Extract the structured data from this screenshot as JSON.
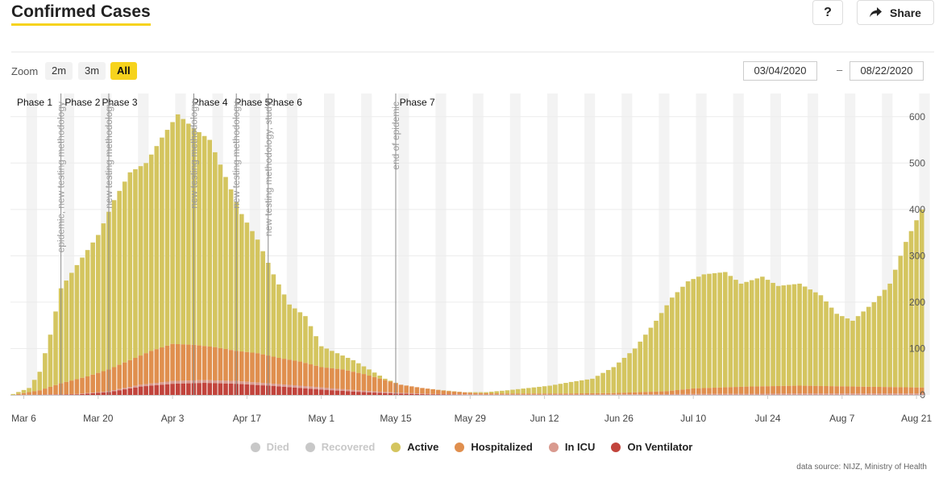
{
  "header": {
    "title": "Confirmed Cases",
    "help_label": "?",
    "share_label": "Share"
  },
  "zoom": {
    "label": "Zoom",
    "options": [
      "2m",
      "3m",
      "All"
    ],
    "selected": "All"
  },
  "range": {
    "from": "03/04/2020",
    "separator": "–",
    "to": "08/22/2020"
  },
  "source": "data source: NIJZ, Ministry of Health",
  "colors": {
    "accent": "#f6d31d",
    "died": "#c8c8c8",
    "recovered": "#c8c8c8",
    "active": "#d4c55f",
    "hospitalized": "#e08f4e",
    "icu": "#d99a8f",
    "ventilator": "#c2443c"
  },
  "chart_data": {
    "type": "bar",
    "stacked": true,
    "x_range": [
      "2020-03-04",
      "2020-08-22"
    ],
    "ylim": [
      0,
      650
    ],
    "y_ticks": [
      0,
      100,
      200,
      300,
      400,
      500,
      600
    ],
    "x_tick_labels": [
      "Mar 6",
      "Mar 20",
      "Apr 3",
      "Apr 17",
      "May 1",
      "May 15",
      "May 29",
      "Jun 12",
      "Jun 26",
      "Jul 10",
      "Jul 24",
      "Aug 7",
      "Aug 21"
    ],
    "grid": true,
    "legend_position": "bottom-center",
    "legend": [
      {
        "name": "Died",
        "visible": false
      },
      {
        "name": "Recovered",
        "visible": false
      },
      {
        "name": "Active",
        "visible": true
      },
      {
        "name": "Hospitalized",
        "visible": true
      },
      {
        "name": "In ICU",
        "visible": true
      },
      {
        "name": "On Ventilator",
        "visible": true
      }
    ],
    "phases": [
      {
        "label": "Phase 1",
        "date": "2020-03-04"
      },
      {
        "label": "Phase 2",
        "date": "2020-03-13"
      },
      {
        "label": "Phase 3",
        "date": "2020-03-20"
      },
      {
        "label": "Phase 4",
        "date": "2020-04-06"
      },
      {
        "label": "Phase 5",
        "date": "2020-04-14"
      },
      {
        "label": "Phase 6",
        "date": "2020-04-20"
      },
      {
        "label": "Phase 7",
        "date": "2020-05-15"
      }
    ],
    "annotations": [
      {
        "date": "2020-03-13",
        "text": "epidemic, new testing methodology"
      },
      {
        "date": "2020-03-22",
        "text": "new testing methodology"
      },
      {
        "date": "2020-04-07",
        "text": "new testing methodology"
      },
      {
        "date": "2020-04-15",
        "text": "new testing methodology"
      },
      {
        "date": "2020-04-21",
        "text": "new testing methodology, study"
      },
      {
        "date": "2020-05-15",
        "text": "end of epidemic"
      }
    ],
    "keypoints": {
      "active": [
        [
          "2020-03-04",
          2
        ],
        [
          "2020-03-07",
          15
        ],
        [
          "2020-03-09",
          50
        ],
        [
          "2020-03-11",
          130
        ],
        [
          "2020-03-13",
          230
        ],
        [
          "2020-03-16",
          280
        ],
        [
          "2020-03-20",
          345
        ],
        [
          "2020-03-23",
          420
        ],
        [
          "2020-03-26",
          480
        ],
        [
          "2020-03-29",
          500
        ],
        [
          "2020-04-01",
          555
        ],
        [
          "2020-04-04",
          605
        ],
        [
          "2020-04-07",
          575
        ],
        [
          "2020-04-10",
          550
        ],
        [
          "2020-04-13",
          470
        ],
        [
          "2020-04-16",
          390
        ],
        [
          "2020-04-19",
          335
        ],
        [
          "2020-04-22",
          260
        ],
        [
          "2020-04-25",
          195
        ],
        [
          "2020-04-28",
          170
        ],
        [
          "2020-05-01",
          105
        ],
        [
          "2020-05-04",
          90
        ],
        [
          "2020-05-07",
          75
        ],
        [
          "2020-05-10",
          55
        ],
        [
          "2020-05-13",
          35
        ],
        [
          "2020-05-16",
          22
        ],
        [
          "2020-05-20",
          15
        ],
        [
          "2020-05-24",
          10
        ],
        [
          "2020-05-28",
          6
        ],
        [
          "2020-06-01",
          6
        ],
        [
          "2020-06-05",
          10
        ],
        [
          "2020-06-09",
          15
        ],
        [
          "2020-06-13",
          20
        ],
        [
          "2020-06-17",
          28
        ],
        [
          "2020-06-21",
          35
        ],
        [
          "2020-06-25",
          60
        ],
        [
          "2020-06-29",
          100
        ],
        [
          "2020-07-03",
          160
        ],
        [
          "2020-07-06",
          210
        ],
        [
          "2020-07-09",
          245
        ],
        [
          "2020-07-12",
          260
        ],
        [
          "2020-07-16",
          265
        ],
        [
          "2020-07-19",
          240
        ],
        [
          "2020-07-23",
          255
        ],
        [
          "2020-07-26",
          235
        ],
        [
          "2020-07-30",
          240
        ],
        [
          "2020-08-03",
          215
        ],
        [
          "2020-08-06",
          175
        ],
        [
          "2020-08-09",
          160
        ],
        [
          "2020-08-13",
          200
        ],
        [
          "2020-08-16",
          240
        ],
        [
          "2020-08-19",
          330
        ],
        [
          "2020-08-22",
          400
        ]
      ],
      "hospitalized": [
        [
          "2020-03-04",
          0
        ],
        [
          "2020-03-09",
          10
        ],
        [
          "2020-03-13",
          25
        ],
        [
          "2020-03-18",
          40
        ],
        [
          "2020-03-22",
          55
        ],
        [
          "2020-03-26",
          75
        ],
        [
          "2020-03-30",
          95
        ],
        [
          "2020-04-03",
          110
        ],
        [
          "2020-04-07",
          108
        ],
        [
          "2020-04-11",
          103
        ],
        [
          "2020-04-15",
          95
        ],
        [
          "2020-04-19",
          90
        ],
        [
          "2020-04-23",
          80
        ],
        [
          "2020-04-27",
          72
        ],
        [
          "2020-05-01",
          60
        ],
        [
          "2020-05-05",
          55
        ],
        [
          "2020-05-09",
          45
        ],
        [
          "2020-05-13",
          32
        ],
        [
          "2020-05-16",
          22
        ],
        [
          "2020-05-20",
          15
        ],
        [
          "2020-05-25",
          8
        ],
        [
          "2020-05-30",
          4
        ],
        [
          "2020-06-05",
          3
        ],
        [
          "2020-06-15",
          3
        ],
        [
          "2020-06-25",
          4
        ],
        [
          "2020-07-05",
          8
        ],
        [
          "2020-07-10",
          14
        ],
        [
          "2020-07-20",
          18
        ],
        [
          "2020-07-30",
          20
        ],
        [
          "2020-08-10",
          18
        ],
        [
          "2020-08-22",
          16
        ]
      ],
      "icu": [
        [
          "2020-03-04",
          0
        ],
        [
          "2020-03-16",
          2
        ],
        [
          "2020-03-22",
          8
        ],
        [
          "2020-03-28",
          22
        ],
        [
          "2020-04-03",
          30
        ],
        [
          "2020-04-09",
          32
        ],
        [
          "2020-04-15",
          30
        ],
        [
          "2020-04-21",
          25
        ],
        [
          "2020-04-27",
          20
        ],
        [
          "2020-05-03",
          14
        ],
        [
          "2020-05-09",
          9
        ],
        [
          "2020-05-15",
          5
        ],
        [
          "2020-05-22",
          2
        ],
        [
          "2020-06-01",
          1
        ],
        [
          "2020-06-20",
          1
        ],
        [
          "2020-07-10",
          2
        ],
        [
          "2020-07-30",
          3
        ],
        [
          "2020-08-22",
          3
        ]
      ],
      "ventilator": [
        [
          "2020-03-04",
          0
        ],
        [
          "2020-03-16",
          1
        ],
        [
          "2020-03-22",
          6
        ],
        [
          "2020-03-28",
          18
        ],
        [
          "2020-04-03",
          24
        ],
        [
          "2020-04-09",
          26
        ],
        [
          "2020-04-15",
          24
        ],
        [
          "2020-04-21",
          20
        ],
        [
          "2020-04-27",
          15
        ],
        [
          "2020-05-03",
          10
        ],
        [
          "2020-05-09",
          6
        ],
        [
          "2020-05-15",
          3
        ],
        [
          "2020-05-22",
          1
        ],
        [
          "2020-06-01",
          0
        ],
        [
          "2020-08-22",
          0
        ]
      ]
    }
  }
}
